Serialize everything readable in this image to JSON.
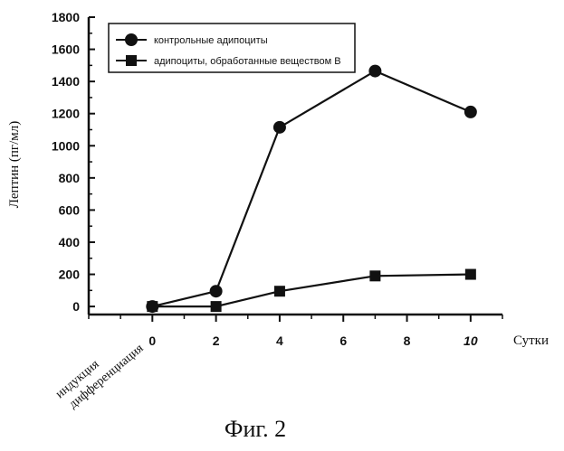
{
  "chart_data": {
    "type": "line",
    "title": "",
    "xlabel": "Сутки",
    "ylabel": "Лептин (пг/мл)",
    "x": [
      0,
      2,
      4,
      7,
      10
    ],
    "x_ticks": [
      "0",
      "2",
      "4",
      "6",
      "8",
      "10"
    ],
    "x_tick_values": [
      0,
      2,
      4,
      6,
      8,
      10
    ],
    "y_ticks": [
      "0",
      "200",
      "400",
      "600",
      "800",
      "1000",
      "1200",
      "1400",
      "1600",
      "1800"
    ],
    "y_tick_values": [
      0,
      200,
      400,
      600,
      800,
      1000,
      1200,
      1400,
      1600,
      1800
    ],
    "xlim": [
      -2.0,
      11.0
    ],
    "ylim": [
      -50,
      1800
    ],
    "grid": false,
    "legend_position": "top-left",
    "series": [
      {
        "name": "контрольные адипоциты",
        "marker": "circle",
        "values": [
          0,
          95,
          1115,
          1465,
          1210
        ]
      },
      {
        "name": "адипоциты, обработанные веществом B",
        "marker": "square",
        "values": [
          0,
          0,
          95,
          190,
          200
        ]
      }
    ],
    "annotation": {
      "line1": "индукция",
      "line2": "дифференциация"
    },
    "caption": "Фиг. 2"
  },
  "colors": {
    "ink": "#111111",
    "background": "#ffffff"
  }
}
